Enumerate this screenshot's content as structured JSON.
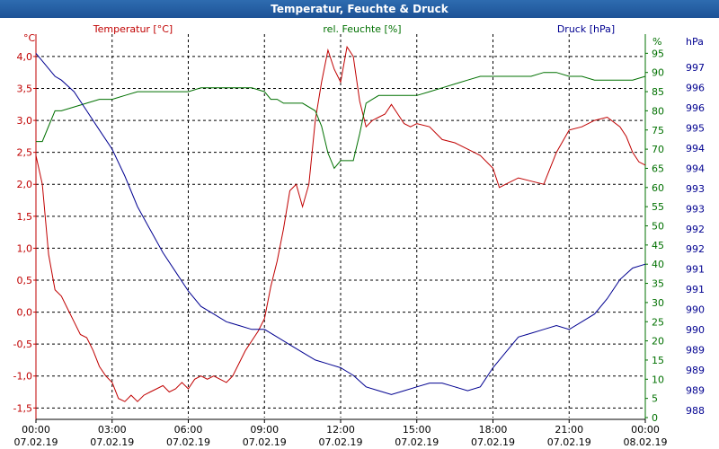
{
  "window": {
    "title": "Temperatur, Feuchte & Druck"
  },
  "colors": {
    "temperature": "#c00000",
    "humidity": "#007000",
    "pressure": "#000090",
    "grid": "#000000",
    "axis_text": "#000000"
  },
  "chart_data": {
    "type": "line",
    "title": "Temperatur, Feuchte & Druck",
    "grid": true,
    "x": {
      "range": [
        0,
        24
      ],
      "ticks": [
        0,
        3,
        6,
        9,
        12,
        15,
        18,
        21,
        24
      ],
      "time_labels": [
        "00:00",
        "03:00",
        "06:00",
        "09:00",
        "12:00",
        "15:00",
        "18:00",
        "21:00",
        "00:00"
      ],
      "date_labels": [
        "07.02.19",
        "07.02.19",
        "07.02.19",
        "07.02.19",
        "07.02.19",
        "07.02.19",
        "07.02.19",
        "07.02.19",
        "08.02.19"
      ]
    },
    "axes": {
      "temperature": {
        "label": "Temperatur [°C]",
        "unit": "°C",
        "range": [
          -1.65,
          4.35
        ],
        "ticks": [
          -1.5,
          -1.0,
          -0.5,
          0.0,
          0.5,
          1.0,
          1.5,
          2.0,
          2.5,
          3.0,
          3.5,
          4.0
        ],
        "tick_labels": [
          "-1,5",
          "-1,0",
          "-0,5",
          "0,0",
          "0,5",
          "1,0",
          "1,5",
          "2,0",
          "2,5",
          "3,0",
          "3,5",
          "4,0"
        ]
      },
      "humidity": {
        "label": "rel. Feuchte [%]",
        "unit": "%",
        "range": [
          0,
          100
        ],
        "ticks": [
          0,
          5,
          10,
          15,
          20,
          25,
          30,
          35,
          40,
          45,
          50,
          55,
          60,
          65,
          70,
          75,
          80,
          85,
          90,
          95
        ],
        "tick_labels": [
          "0",
          "5",
          "10",
          "15",
          "20",
          "25",
          "30",
          "35",
          "40",
          "45",
          "50",
          "55",
          "60",
          "65",
          "70",
          "75",
          "80",
          "85",
          "90",
          "95"
        ]
      },
      "pressure": {
        "label": "Druck [hPa]",
        "unit": "hPa",
        "tick_labels": [
          "988",
          "989",
          "989",
          "989",
          "990",
          "990",
          "991",
          "991",
          "992",
          "992",
          "993",
          "993",
          "994",
          "994",
          "995",
          "996",
          "996",
          "997"
        ]
      }
    },
    "series": [
      {
        "name": "Temperatur [°C]",
        "axis": "temperature",
        "x": [
          0,
          0.25,
          0.5,
          0.75,
          1.0,
          1.25,
          1.5,
          1.75,
          2.0,
          2.25,
          2.5,
          2.75,
          3.0,
          3.25,
          3.5,
          3.75,
          4.0,
          4.25,
          4.5,
          4.75,
          5.0,
          5.25,
          5.5,
          5.75,
          6.0,
          6.25,
          6.5,
          6.75,
          7.0,
          7.25,
          7.5,
          7.75,
          8.0,
          8.25,
          8.5,
          8.75,
          9.0,
          9.25,
          9.5,
          9.75,
          10.0,
          10.25,
          10.5,
          10.75,
          11.0,
          11.25,
          11.5,
          11.75,
          12.0,
          12.25,
          12.5,
          12.75,
          13.0,
          13.25,
          13.5,
          13.75,
          14.0,
          14.25,
          14.5,
          14.75,
          15.0,
          15.5,
          16.0,
          16.5,
          17.0,
          17.5,
          18.0,
          18.25,
          18.5,
          19.0,
          19.5,
          20.0,
          20.5,
          21.0,
          21.5,
          22.0,
          22.5,
          23.0,
          23.25,
          23.5,
          23.75,
          24.0
        ],
        "values": [
          2.45,
          2.0,
          0.9,
          0.35,
          0.25,
          0.05,
          -0.15,
          -0.35,
          -0.4,
          -0.6,
          -0.85,
          -1.0,
          -1.1,
          -1.35,
          -1.4,
          -1.3,
          -1.4,
          -1.3,
          -1.25,
          -1.2,
          -1.15,
          -1.25,
          -1.2,
          -1.1,
          -1.2,
          -1.05,
          -1.0,
          -1.05,
          -1.0,
          -1.05,
          -1.1,
          -1.0,
          -0.8,
          -0.6,
          -0.45,
          -0.3,
          -0.1,
          0.4,
          0.8,
          1.3,
          1.9,
          2.0,
          1.65,
          2.0,
          3.0,
          3.6,
          4.1,
          3.8,
          3.6,
          4.15,
          4.0,
          3.3,
          2.9,
          3.0,
          3.05,
          3.1,
          3.25,
          3.1,
          2.95,
          2.9,
          2.95,
          2.9,
          2.7,
          2.65,
          2.55,
          2.45,
          2.25,
          1.95,
          2.0,
          2.1,
          2.05,
          2.0,
          2.5,
          2.85,
          2.9,
          3.0,
          3.05,
          2.9,
          2.75,
          2.5,
          2.35,
          2.3
        ]
      },
      {
        "name": "rel. Feuchte [%]",
        "axis": "humidity",
        "x": [
          0,
          0.25,
          0.5,
          0.75,
          1.0,
          1.5,
          2.0,
          2.5,
          3.0,
          3.5,
          4.0,
          4.5,
          5.0,
          5.5,
          6.0,
          6.5,
          7.0,
          7.5,
          8.0,
          8.5,
          9.0,
          9.25,
          9.5,
          9.75,
          10.0,
          10.5,
          11.0,
          11.25,
          11.5,
          11.75,
          12.0,
          12.25,
          12.5,
          12.75,
          13.0,
          13.25,
          13.5,
          14.0,
          14.5,
          15.0,
          15.5,
          16.0,
          16.5,
          17.0,
          17.5,
          18.0,
          18.5,
          19.0,
          19.5,
          20.0,
          20.5,
          21.0,
          21.5,
          22.0,
          22.5,
          23.0,
          23.5,
          24.0
        ],
        "values": [
          72,
          72,
          76,
          80,
          80,
          81,
          82,
          83,
          83,
          84,
          85,
          85,
          85,
          85,
          85,
          86,
          86,
          86,
          86,
          86,
          85,
          83,
          83,
          82,
          82,
          82,
          80,
          76,
          69,
          65,
          67,
          67,
          67,
          74,
          82,
          83,
          84,
          84,
          84,
          84,
          85,
          86,
          87,
          88,
          89,
          89,
          89,
          89,
          89,
          90,
          90,
          89,
          89,
          88,
          88,
          88,
          88,
          89
        ]
      },
      {
        "name": "Druck [hPa]",
        "axis": "pressure",
        "x": [
          0,
          0.25,
          0.5,
          0.75,
          1.0,
          1.5,
          2.0,
          2.5,
          3.0,
          3.5,
          4.0,
          4.5,
          5.0,
          5.5,
          6.0,
          6.5,
          7.0,
          7.5,
          8.0,
          8.5,
          9.0,
          9.5,
          10.0,
          10.5,
          11.0,
          11.5,
          12.0,
          12.5,
          13.0,
          13.5,
          14.0,
          14.5,
          15.0,
          15.5,
          16.0,
          16.5,
          17.0,
          17.5,
          18.0,
          18.5,
          19.0,
          19.5,
          20.0,
          20.5,
          21.0,
          21.5,
          22.0,
          22.5,
          23.0,
          23.5,
          24.0
        ],
        "values_pct": [
          95,
          93,
          91,
          89,
          88,
          85,
          80,
          75,
          70,
          63,
          55,
          49,
          43,
          38,
          33,
          29,
          27,
          25,
          24,
          23,
          23,
          21,
          19,
          17,
          15,
          14,
          13,
          11,
          8,
          7,
          6,
          7,
          8,
          9,
          9,
          8,
          7,
          8,
          13,
          17,
          21,
          22,
          23,
          24,
          23,
          25,
          27,
          31,
          36,
          39,
          40
        ]
      }
    ]
  }
}
